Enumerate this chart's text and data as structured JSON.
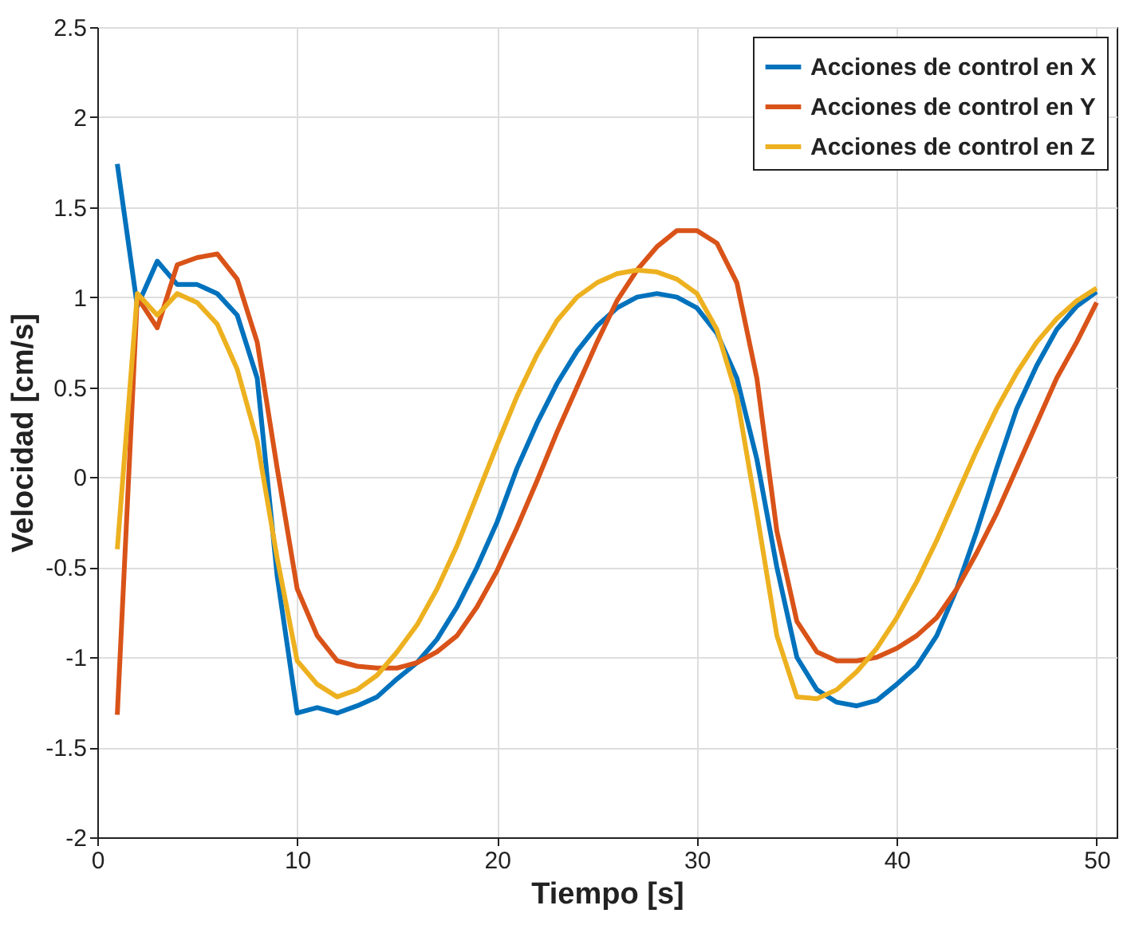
{
  "chart_data": {
    "type": "line",
    "xlabel": "Tiempo [s]",
    "ylabel": "Velocidad [cm/s]",
    "x": [
      1,
      2,
      3,
      4,
      5,
      6,
      7,
      8,
      9,
      10,
      11,
      12,
      13,
      14,
      15,
      16,
      17,
      18,
      19,
      20,
      21,
      22,
      23,
      24,
      25,
      26,
      27,
      28,
      29,
      30,
      31,
      32,
      33,
      34,
      35,
      36,
      37,
      38,
      39,
      40,
      41,
      42,
      43,
      44,
      45,
      46,
      47,
      48,
      49,
      50
    ],
    "series": [
      {
        "name": "Acciones de control en X",
        "color": "#0072bd",
        "values": [
          1.74,
          0.95,
          1.2,
          1.07,
          1.07,
          1.02,
          0.9,
          0.55,
          -0.55,
          -1.31,
          -1.28,
          -1.31,
          -1.27,
          -1.22,
          -1.12,
          -1.03,
          -0.9,
          -0.72,
          -0.5,
          -0.25,
          0.05,
          0.3,
          0.52,
          0.7,
          0.84,
          0.94,
          1.0,
          1.02,
          1.0,
          0.94,
          0.8,
          0.55,
          0.1,
          -0.5,
          -1.0,
          -1.18,
          -1.25,
          -1.27,
          -1.24,
          -1.15,
          -1.05,
          -0.88,
          -0.62,
          -0.3,
          0.05,
          0.38,
          0.62,
          0.82,
          0.95,
          1.03
        ]
      },
      {
        "name": "Acciones de control en Y",
        "color": "#d95319",
        "values": [
          -1.32,
          1.0,
          0.83,
          1.18,
          1.22,
          1.24,
          1.1,
          0.75,
          0.05,
          -0.62,
          -0.88,
          -1.02,
          -1.05,
          -1.06,
          -1.06,
          -1.03,
          -0.97,
          -0.88,
          -0.72,
          -0.52,
          -0.28,
          -0.02,
          0.25,
          0.5,
          0.75,
          0.98,
          1.15,
          1.28,
          1.37,
          1.37,
          1.3,
          1.08,
          0.55,
          -0.3,
          -0.8,
          -0.97,
          -1.02,
          -1.02,
          -1.0,
          -0.95,
          -0.88,
          -0.78,
          -0.62,
          -0.42,
          -0.2,
          0.05,
          0.3,
          0.55,
          0.75,
          0.97
        ]
      },
      {
        "name": "Acciones de control en Z",
        "color": "#edb120",
        "values": [
          -0.4,
          1.02,
          0.9,
          1.02,
          0.97,
          0.85,
          0.6,
          0.2,
          -0.45,
          -1.02,
          -1.15,
          -1.22,
          -1.18,
          -1.1,
          -0.97,
          -0.82,
          -0.62,
          -0.38,
          -0.1,
          0.18,
          0.45,
          0.68,
          0.87,
          1.0,
          1.08,
          1.13,
          1.15,
          1.14,
          1.1,
          1.02,
          0.82,
          0.45,
          -0.2,
          -0.88,
          -1.22,
          -1.23,
          -1.18,
          -1.08,
          -0.95,
          -0.78,
          -0.58,
          -0.35,
          -0.1,
          0.15,
          0.38,
          0.58,
          0.75,
          0.88,
          0.98,
          1.05
        ]
      }
    ],
    "xlim": [
      0,
      51
    ],
    "xticks": [
      0,
      10,
      20,
      30,
      40,
      50
    ],
    "ylim": [
      -2,
      2.5
    ],
    "yticks": [
      -2,
      -1.5,
      -1,
      -0.5,
      0,
      0.5,
      1,
      1.5,
      2,
      2.5
    ],
    "grid": true,
    "legend": "top right",
    "marker": "none",
    "line_style": "solid"
  }
}
